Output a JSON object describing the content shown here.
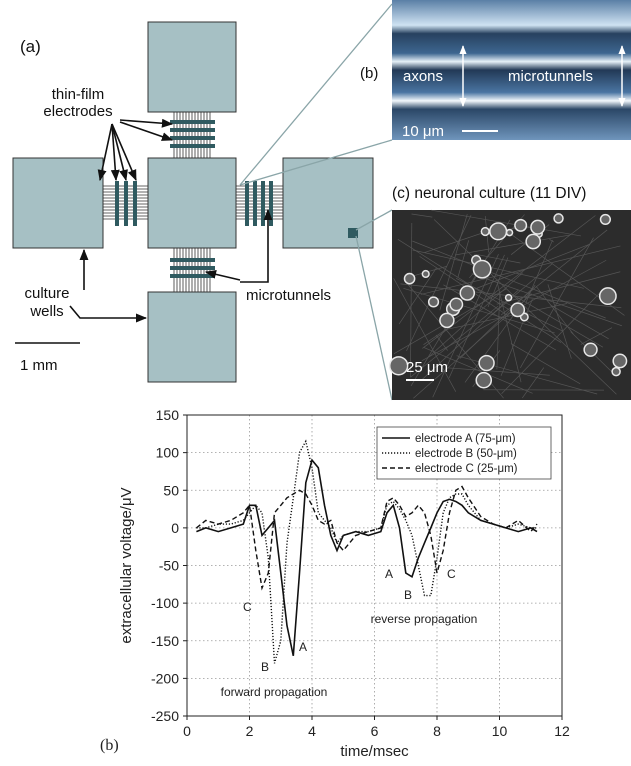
{
  "diagram": {
    "panel_a": "(a)",
    "electrodes_line1": "thin-film",
    "electrodes_line2": "electrodes",
    "wells_line1": "culture",
    "wells_line2": "wells",
    "microtunnels": "microtunnels",
    "scale": "1 mm",
    "panel_b": "(b)",
    "axons": "axons",
    "b_microtunnels": "microtunnels",
    "b_scale": "10 μm",
    "panel_c": "(c) neuronal culture (11 DIV)",
    "c_scale": "25 μm"
  },
  "chart_data": {
    "type": "line",
    "panel_label": "(b)",
    "x_label": "time/msec",
    "y_label": "extracellular voltage/μV",
    "xlim": [
      0,
      12
    ],
    "ylim": [
      -250,
      150
    ],
    "xticks": [
      0,
      2,
      4,
      6,
      8,
      10,
      12
    ],
    "yticks": [
      -250,
      -200,
      -150,
      -100,
      -50,
      0,
      50,
      100,
      150
    ],
    "grid": true,
    "legend": "upper right",
    "x": [
      0.3,
      0.6,
      1.0,
      1.4,
      1.8,
      2.0,
      2.2,
      2.4,
      2.6,
      2.8,
      3.0,
      3.2,
      3.4,
      3.6,
      3.8,
      4.0,
      4.2,
      4.4,
      4.6,
      4.8,
      5.0,
      5.4,
      5.8,
      6.2,
      6.4,
      6.6,
      6.8,
      7.0,
      7.2,
      7.4,
      7.6,
      7.8,
      8.0,
      8.2,
      8.4,
      8.6,
      8.8,
      9.0,
      9.4,
      9.8,
      10.2,
      10.6,
      11.0,
      11.2
    ],
    "series": [
      {
        "name": "electrode A (75-μm)",
        "color": "#111111",
        "dash": "solid",
        "values": [
          -5,
          0,
          -5,
          0,
          5,
          30,
          30,
          -10,
          0,
          10,
          -60,
          -130,
          -170,
          -60,
          60,
          90,
          80,
          30,
          -10,
          -30,
          -10,
          -5,
          -10,
          -5,
          20,
          30,
          0,
          -60,
          -65,
          -40,
          -20,
          0,
          20,
          35,
          38,
          35,
          30,
          20,
          10,
          5,
          0,
          -5,
          0,
          -5
        ]
      },
      {
        "name": "electrode B (50-μm)",
        "color": "#111111",
        "dash": "dotted",
        "values": [
          0,
          0,
          5,
          5,
          10,
          20,
          30,
          20,
          -40,
          -180,
          -150,
          -20,
          40,
          100,
          115,
          80,
          20,
          10,
          0,
          -20,
          -10,
          -5,
          -5,
          0,
          30,
          35,
          25,
          10,
          -10,
          -50,
          -90,
          -90,
          -40,
          20,
          40,
          45,
          45,
          30,
          10,
          5,
          0,
          5,
          0,
          0
        ]
      },
      {
        "name": "electrode C (25-μm)",
        "color": "#111111",
        "dash": "dashed",
        "values": [
          0,
          10,
          5,
          10,
          20,
          30,
          -30,
          -80,
          -60,
          20,
          30,
          40,
          45,
          50,
          45,
          30,
          10,
          5,
          10,
          -20,
          -30,
          -10,
          -5,
          0,
          35,
          40,
          30,
          15,
          20,
          30,
          20,
          -10,
          -60,
          -30,
          20,
          50,
          55,
          40,
          15,
          5,
          0,
          10,
          -5,
          5
        ]
      }
    ],
    "annotations": [
      "C",
      "B",
      "A",
      "forward propagation",
      "A",
      "B",
      "C",
      "reverse propagation"
    ]
  }
}
